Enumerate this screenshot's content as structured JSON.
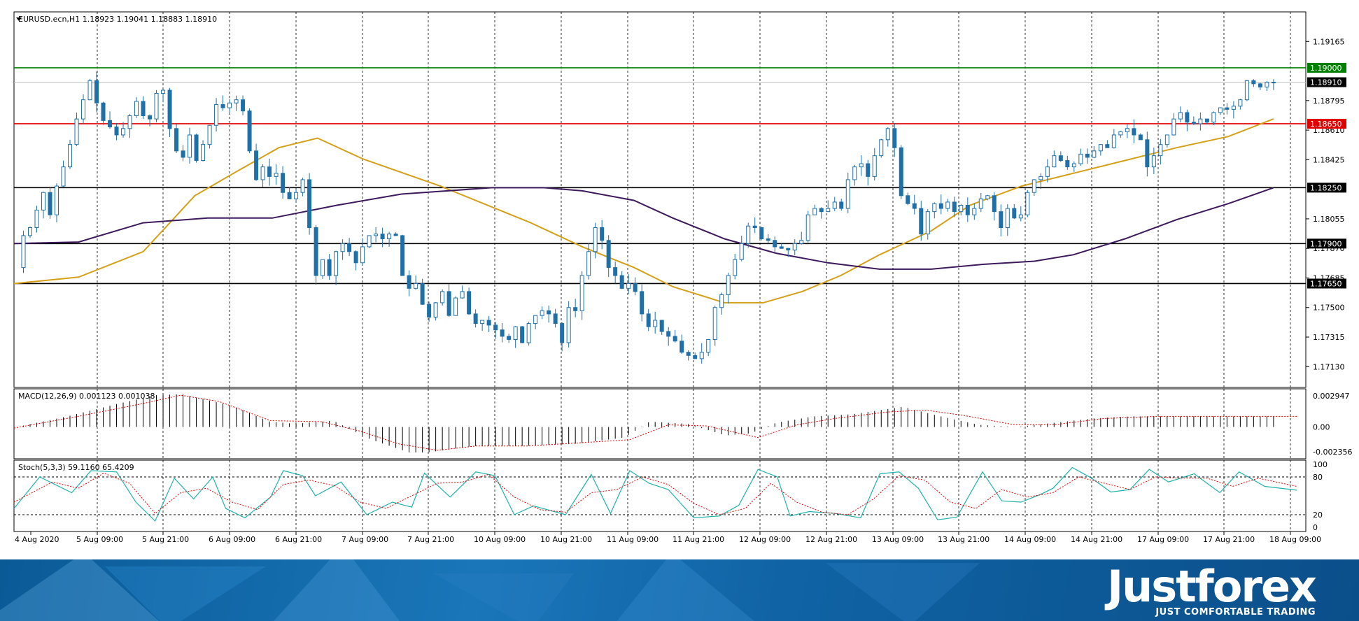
{
  "chart_data": [
    {
      "type": "candlestick",
      "title": "EURUSD.ecn,H1  1.18923 1.19041 1.18883 1.18910",
      "ylim": [
        1.17,
        1.1935
      ],
      "y_ticks": [
        "1.19165",
        "1.18795",
        "1.18610",
        "1.18425",
        "1.18055",
        "1.17870",
        "1.17685",
        "1.17500",
        "1.17315",
        "1.17130"
      ],
      "x_ticks": [
        "4 Aug 2020",
        "5 Aug 09:00",
        "5 Aug 21:00",
        "6 Aug 09:00",
        "6 Aug 21:00",
        "7 Aug 09:00",
        "7 Aug 21:00",
        "10 Aug 09:00",
        "10 Aug 21:00",
        "11 Aug 09:00",
        "11 Aug 21:00",
        "12 Aug 09:00",
        "12 Aug 21:00",
        "13 Aug 09:00",
        "13 Aug 21:00",
        "14 Aug 09:00",
        "14 Aug 21:00",
        "17 Aug 09:00",
        "17 Aug 21:00",
        "18 Aug 09:00"
      ],
      "levels": [
        {
          "value": 1.19,
          "label": "1.19000",
          "color": "#008000"
        },
        {
          "value": 1.1865,
          "label": "1.18650",
          "color": "#e00000"
        },
        {
          "value": 1.1825,
          "label": "1.18250",
          "color": "#000000"
        },
        {
          "value": 1.179,
          "label": "1.17900",
          "color": "#000000"
        },
        {
          "value": 1.1765,
          "label": "1.17650",
          "color": "#000000"
        }
      ],
      "last_price": {
        "value": 1.1891,
        "label": "1.18910"
      },
      "close_path": [
        1.1775,
        1.1795,
        1.18,
        1.1811,
        1.1822,
        1.1808,
        1.1826,
        1.1838,
        1.1852,
        1.1868,
        1.188,
        1.1892,
        1.1878,
        1.1867,
        1.1863,
        1.1858,
        1.1862,
        1.187,
        1.1879,
        1.187,
        1.1868,
        1.1884,
        1.1886,
        1.1862,
        1.1848,
        1.1844,
        1.1858,
        1.1842,
        1.1852,
        1.1864,
        1.1877,
        1.1875,
        1.1878,
        1.188,
        1.1873,
        1.1848,
        1.183,
        1.1838,
        1.1832,
        1.1834,
        1.1822,
        1.1818,
        1.1822,
        1.183,
        1.18,
        1.177,
        1.178,
        1.177,
        1.1785,
        1.179,
        1.1785,
        1.1778,
        1.1788,
        1.1795,
        1.1796,
        1.1793,
        1.1796,
        1.1795,
        1.177,
        1.1762,
        1.1765,
        1.1752,
        1.1744,
        1.1753,
        1.176,
        1.1745,
        1.1756,
        1.176,
        1.1746,
        1.174,
        1.1742,
        1.1739,
        1.1736,
        1.1732,
        1.173,
        1.1738,
        1.1728,
        1.174,
        1.1745,
        1.1748,
        1.1746,
        1.174,
        1.1728,
        1.175,
        1.1748,
        1.177,
        1.1785,
        1.18,
        1.1792,
        1.1775,
        1.177,
        1.1762,
        1.1765,
        1.176,
        1.1746,
        1.1738,
        1.1742,
        1.1735,
        1.1732,
        1.1729,
        1.1722,
        1.172,
        1.1718,
        1.1722,
        1.173,
        1.175,
        1.1758,
        1.177,
        1.178,
        1.179,
        1.1801,
        1.18,
        1.1793,
        1.1792,
        1.1788,
        1.1787,
        1.1786,
        1.179,
        1.1792,
        1.1808,
        1.1812,
        1.181,
        1.1812,
        1.1816,
        1.1812,
        1.183,
        1.1838,
        1.184,
        1.1832,
        1.1845,
        1.1855,
        1.1862,
        1.185,
        1.182,
        1.1815,
        1.1812,
        1.1796,
        1.181,
        1.1815,
        1.1812,
        1.1816,
        1.181,
        1.1814,
        1.1808,
        1.1812,
        1.1818,
        1.182,
        1.181,
        1.18,
        1.1812,
        1.1806,
        1.1808,
        1.1822,
        1.183,
        1.1832,
        1.1838,
        1.1845,
        1.1842,
        1.1838,
        1.184,
        1.1846,
        1.1844,
        1.1848,
        1.1852,
        1.185,
        1.1858,
        1.186,
        1.1862,
        1.1858,
        1.1855,
        1.1838,
        1.1845,
        1.1852,
        1.1858,
        1.1868,
        1.1872,
        1.1866,
        1.1865,
        1.1868,
        1.1866,
        1.1872,
        1.1875,
        1.1874,
        1.1876,
        1.188,
        1.1892,
        1.189,
        1.1888,
        1.1891,
        1.1891
      ],
      "ma_fast": [
        [
          0,
          1.1765
        ],
        [
          0.05,
          1.1769
        ],
        [
          0.1,
          1.1785
        ],
        [
          0.14,
          1.182
        ],
        [
          0.17,
          1.1834
        ],
        [
          0.205,
          1.185
        ],
        [
          0.235,
          1.1856
        ],
        [
          0.27,
          1.1843
        ],
        [
          0.33,
          1.1826
        ],
        [
          0.4,
          1.1803
        ],
        [
          0.44,
          1.1788
        ],
        [
          0.48,
          1.1775
        ],
        [
          0.51,
          1.1763
        ],
        [
          0.55,
          1.1753
        ],
        [
          0.58,
          1.1753
        ],
        [
          0.61,
          1.176
        ],
        [
          0.64,
          1.177
        ],
        [
          0.67,
          1.1783
        ],
        [
          0.71,
          1.1798
        ],
        [
          0.74,
          1.1814
        ],
        [
          0.78,
          1.1826
        ],
        [
          0.82,
          1.1834
        ],
        [
          0.86,
          1.1842
        ],
        [
          0.9,
          1.185
        ],
        [
          0.94,
          1.1857
        ],
        [
          0.975,
          1.1868
        ]
      ],
      "ma_slow": [
        [
          0,
          1.179
        ],
        [
          0.05,
          1.1791
        ],
        [
          0.1,
          1.1803
        ],
        [
          0.15,
          1.1806
        ],
        [
          0.2,
          1.1806
        ],
        [
          0.25,
          1.1814
        ],
        [
          0.3,
          1.1821
        ],
        [
          0.37,
          1.1825
        ],
        [
          0.41,
          1.1825
        ],
        [
          0.44,
          1.1823
        ],
        [
          0.48,
          1.1817
        ],
        [
          0.51,
          1.1806
        ],
        [
          0.55,
          1.1793
        ],
        [
          0.59,
          1.1784
        ],
        [
          0.63,
          1.1778
        ],
        [
          0.67,
          1.1774
        ],
        [
          0.71,
          1.1774
        ],
        [
          0.75,
          1.1777
        ],
        [
          0.79,
          1.1779
        ],
        [
          0.82,
          1.1783
        ],
        [
          0.86,
          1.1793
        ],
        [
          0.9,
          1.1805
        ],
        [
          0.94,
          1.1815
        ],
        [
          0.975,
          1.1825
        ]
      ]
    },
    {
      "type": "bar",
      "title": "MACD(12,26,9) 0.001123 0.001038",
      "ylim": [
        -0.003,
        0.0036
      ],
      "y_ticks": [
        "0.002947",
        "0.00",
        "-0.002356"
      ],
      "histogram_path": [
        [
          0,
          0.0
        ],
        [
          0.04,
          0.001
        ],
        [
          0.08,
          0.0022
        ],
        [
          0.11,
          0.003
        ],
        [
          0.13,
          0.0031
        ],
        [
          0.17,
          0.002
        ],
        [
          0.2,
          0.0005
        ],
        [
          0.22,
          0.0003
        ],
        [
          0.25,
          0.0006
        ],
        [
          0.28,
          -0.0012
        ],
        [
          0.31,
          -0.0024
        ],
        [
          0.325,
          -0.0024
        ],
        [
          0.36,
          -0.0018
        ],
        [
          0.4,
          -0.0018
        ],
        [
          0.44,
          -0.0016
        ],
        [
          0.48,
          -0.001
        ],
        [
          0.5,
          0.0005
        ],
        [
          0.53,
          0.0003
        ],
        [
          0.56,
          -0.0008
        ],
        [
          0.58,
          -0.0006
        ],
        [
          0.6,
          0.0004
        ],
        [
          0.63,
          0.001
        ],
        [
          0.66,
          0.0012
        ],
        [
          0.7,
          0.0019
        ],
        [
          0.73,
          0.001
        ],
        [
          0.76,
          0.0002
        ],
        [
          0.79,
          0.0
        ],
        [
          0.82,
          0.0004
        ],
        [
          0.85,
          0.0008
        ],
        [
          0.88,
          0.001
        ],
        [
          0.92,
          0.001
        ],
        [
          0.96,
          0.001
        ],
        [
          1.0,
          0.001
        ]
      ],
      "signal_path": [
        [
          0,
          -0.0001
        ],
        [
          0.05,
          0.001
        ],
        [
          0.1,
          0.0022
        ],
        [
          0.13,
          0.003
        ],
        [
          0.16,
          0.0024
        ],
        [
          0.2,
          0.0006
        ],
        [
          0.24,
          0.0005
        ],
        [
          0.27,
          -0.0004
        ],
        [
          0.3,
          -0.0016
        ],
        [
          0.33,
          -0.0022
        ],
        [
          0.36,
          -0.0018
        ],
        [
          0.4,
          -0.0018
        ],
        [
          0.44,
          -0.0015
        ],
        [
          0.48,
          -0.0012
        ],
        [
          0.51,
          0.0002
        ],
        [
          0.54,
          0.0001
        ],
        [
          0.58,
          -0.001
        ],
        [
          0.61,
          0.0002
        ],
        [
          0.64,
          0.0008
        ],
        [
          0.68,
          0.0014
        ],
        [
          0.71,
          0.0016
        ],
        [
          0.74,
          0.0011
        ],
        [
          0.78,
          0.0002
        ],
        [
          0.81,
          0.0002
        ],
        [
          0.85,
          0.0008
        ],
        [
          0.89,
          0.001
        ],
        [
          0.93,
          0.001
        ],
        [
          0.97,
          0.001
        ],
        [
          1.0,
          0.001
        ]
      ]
    },
    {
      "type": "line",
      "title": "Stoch(5,3,3) 59.1160 65.4209",
      "ylim": [
        0,
        100
      ],
      "y_ticks": [
        "100",
        "80",
        "20",
        "0"
      ],
      "levels": [
        80,
        20
      ],
      "main_path": [
        [
          0,
          30
        ],
        [
          0.02,
          80
        ],
        [
          0.045,
          55
        ],
        [
          0.06,
          90
        ],
        [
          0.08,
          88
        ],
        [
          0.095,
          40
        ],
        [
          0.11,
          10
        ],
        [
          0.125,
          78
        ],
        [
          0.14,
          45
        ],
        [
          0.155,
          80
        ],
        [
          0.165,
          30
        ],
        [
          0.18,
          15
        ],
        [
          0.2,
          48
        ],
        [
          0.21,
          90
        ],
        [
          0.225,
          82
        ],
        [
          0.235,
          50
        ],
        [
          0.255,
          72
        ],
        [
          0.275,
          20
        ],
        [
          0.295,
          40
        ],
        [
          0.31,
          32
        ],
        [
          0.32,
          86
        ],
        [
          0.34,
          48
        ],
        [
          0.36,
          88
        ],
        [
          0.375,
          82
        ],
        [
          0.39,
          20
        ],
        [
          0.405,
          34
        ],
        [
          0.43,
          20
        ],
        [
          0.45,
          84
        ],
        [
          0.465,
          22
        ],
        [
          0.48,
          90
        ],
        [
          0.495,
          70
        ],
        [
          0.51,
          60
        ],
        [
          0.53,
          15
        ],
        [
          0.55,
          18
        ],
        [
          0.565,
          35
        ],
        [
          0.58,
          92
        ],
        [
          0.595,
          80
        ],
        [
          0.605,
          18
        ],
        [
          0.62,
          25
        ],
        [
          0.64,
          22
        ],
        [
          0.66,
          15
        ],
        [
          0.675,
          85
        ],
        [
          0.69,
          88
        ],
        [
          0.705,
          62
        ],
        [
          0.72,
          12
        ],
        [
          0.735,
          16
        ],
        [
          0.755,
          88
        ],
        [
          0.77,
          42
        ],
        [
          0.785,
          40
        ],
        [
          0.8,
          52
        ],
        [
          0.81,
          62
        ],
        [
          0.825,
          95
        ],
        [
          0.84,
          78
        ],
        [
          0.855,
          56
        ],
        [
          0.87,
          60
        ],
        [
          0.885,
          92
        ],
        [
          0.9,
          72
        ],
        [
          0.92,
          85
        ],
        [
          0.94,
          55
        ],
        [
          0.955,
          88
        ],
        [
          0.975,
          65
        ],
        [
          1.0,
          59
        ]
      ],
      "signal_path": [
        [
          0,
          40
        ],
        [
          0.03,
          72
        ],
        [
          0.05,
          62
        ],
        [
          0.07,
          86
        ],
        [
          0.09,
          70
        ],
        [
          0.11,
          22
        ],
        [
          0.13,
          55
        ],
        [
          0.15,
          62
        ],
        [
          0.17,
          40
        ],
        [
          0.19,
          28
        ],
        [
          0.21,
          68
        ],
        [
          0.23,
          75
        ],
        [
          0.25,
          66
        ],
        [
          0.27,
          40
        ],
        [
          0.29,
          30
        ],
        [
          0.31,
          50
        ],
        [
          0.33,
          70
        ],
        [
          0.35,
          72
        ],
        [
          0.37,
          84
        ],
        [
          0.39,
          48
        ],
        [
          0.41,
          28
        ],
        [
          0.43,
          24
        ],
        [
          0.45,
          55
        ],
        [
          0.47,
          60
        ],
        [
          0.49,
          80
        ],
        [
          0.51,
          68
        ],
        [
          0.53,
          38
        ],
        [
          0.55,
          20
        ],
        [
          0.57,
          30
        ],
        [
          0.59,
          70
        ],
        [
          0.61,
          40
        ],
        [
          0.63,
          24
        ],
        [
          0.65,
          20
        ],
        [
          0.67,
          45
        ],
        [
          0.69,
          82
        ],
        [
          0.71,
          75
        ],
        [
          0.73,
          40
        ],
        [
          0.75,
          30
        ],
        [
          0.77,
          60
        ],
        [
          0.79,
          48
        ],
        [
          0.81,
          55
        ],
        [
          0.83,
          80
        ],
        [
          0.85,
          70
        ],
        [
          0.87,
          60
        ],
        [
          0.89,
          80
        ],
        [
          0.91,
          78
        ],
        [
          0.93,
          78
        ],
        [
          0.95,
          65
        ],
        [
          0.97,
          78
        ],
        [
          1.0,
          65
        ]
      ]
    }
  ],
  "brand": {
    "logo": "Justforex",
    "slogan": "JUST COMFORTABLE TRADING"
  },
  "colors": {
    "bull": "#1f6fa8",
    "bear": "#1f6fa8",
    "ma_fast": "#d4a017",
    "ma_slow": "#3c1a5b",
    "stoch_main": "#20b2aa",
    "stoch_signal": "#e00000",
    "macd_signal": "#e00000"
  }
}
